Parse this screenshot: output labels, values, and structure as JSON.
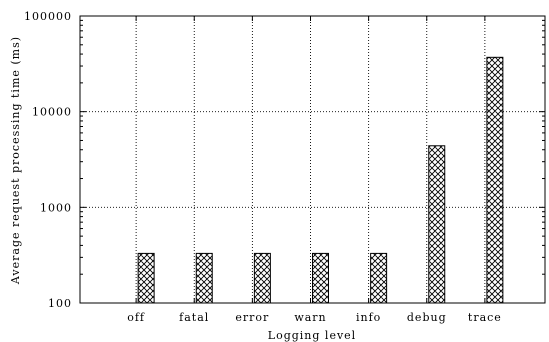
{
  "chart_data": {
    "type": "bar",
    "xlabel": "Logging level",
    "ylabel": "Average request processing time (ms)",
    "yscale": "log",
    "ylim": [
      100,
      100000
    ],
    "yticks": [
      "100",
      "1000",
      "10000",
      "100000"
    ],
    "categories": [
      "off",
      "fatal",
      "error",
      "warn",
      "info",
      "debug",
      "trace"
    ],
    "values": [
      330,
      330,
      330,
      330,
      330,
      4400,
      37000
    ],
    "grid": true,
    "bar_fill": "cross-hatch",
    "colors": {
      "bar_stroke": "#000000",
      "grid": "#000000",
      "background": "#ffffff"
    }
  }
}
